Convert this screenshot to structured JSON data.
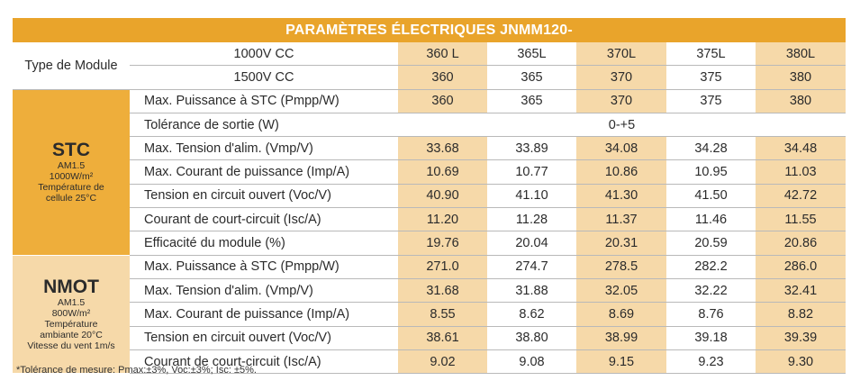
{
  "title": "PARAMÈTRES ÉLECTRIQUES JNMM120-",
  "type_module": {
    "label": "Type de Module",
    "rows": [
      {
        "label": "1000V CC",
        "values": [
          "360 L",
          "365L",
          "370L",
          "375L",
          "380L"
        ]
      },
      {
        "label": "1500V CC",
        "values": [
          "360",
          "365",
          "370",
          "375",
          "380"
        ]
      }
    ]
  },
  "stc": {
    "title": "STC",
    "sub1": "AM1.5",
    "sub2": "1000W/m²",
    "sub3": "Température de",
    "sub4": "cellule 25°C",
    "rows": [
      {
        "label": "Max. Puissance à STC (Pmpp/W)",
        "values": [
          "360",
          "365",
          "370",
          "375",
          "380"
        ]
      },
      {
        "label": "Tolérance de sortie (W)",
        "merged": "0-+5"
      },
      {
        "label": "Max. Tension d'alim. (Vmp/V)",
        "values": [
          "33.68",
          "33.89",
          "34.08",
          "34.28",
          "34.48"
        ]
      },
      {
        "label": "Max. Courant de puissance (Imp/A)",
        "values": [
          "10.69",
          "10.77",
          "10.86",
          "10.95",
          "11.03"
        ]
      },
      {
        "label": "Tension en circuit ouvert (Voc/V)",
        "values": [
          "40.90",
          "41.10",
          "41.30",
          "41.50",
          "42.72"
        ]
      },
      {
        "label": "Courant de court-circuit (Isc/A)",
        "values": [
          "11.20",
          "11.28",
          "11.37",
          "11.46",
          "11.55"
        ]
      },
      {
        "label": "Efficacité du module (%)",
        "values": [
          "19.76",
          "20.04",
          "20.31",
          "20.59",
          "20.86"
        ]
      }
    ]
  },
  "nmot": {
    "title": "NMOT",
    "sub1": "AM1.5",
    "sub2": "800W/m²",
    "sub3": "Température",
    "sub4": "ambiante 20°C",
    "sub5": "Vitesse du vent 1m/s",
    "rows": [
      {
        "label": "Max. Puissance à STC (Pmpp/W)",
        "values": [
          "271.0",
          "274.7",
          "278.5",
          "282.2",
          "286.0"
        ]
      },
      {
        "label": "Max. Tension d'alim. (Vmp/V)",
        "values": [
          "31.68",
          "31.88",
          "32.05",
          "32.22",
          "32.41"
        ]
      },
      {
        "label": "Max. Courant de puissance (Imp/A)",
        "values": [
          "8.55",
          "8.62",
          "8.69",
          "8.76",
          "8.82"
        ]
      },
      {
        "label": "Tension en circuit ouvert (Voc/V)",
        "values": [
          "38.61",
          "38.80",
          "38.99",
          "39.18",
          "39.39"
        ]
      },
      {
        "label": "Courant de court-circuit (Isc/A)",
        "values": [
          "9.02",
          "9.08",
          "9.15",
          "9.23",
          "9.30"
        ]
      }
    ]
  },
  "footnote": "*Tolérance de mesure: Pmax:±3%, Voc:±3%; Isc: ±5%.",
  "colors": {
    "accent": "#e9a42b",
    "stc_band": "#eeae3b",
    "light_band": "#f6d9a9"
  }
}
